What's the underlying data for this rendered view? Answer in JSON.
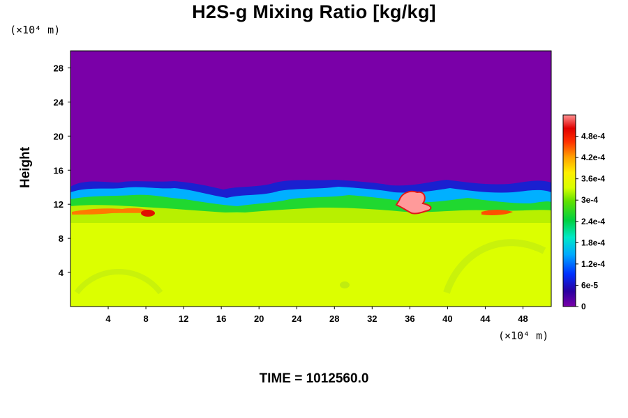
{
  "chart_data": {
    "type": "heatmap",
    "title": "H2S-g Mixing Ratio [kg/kg]",
    "ylabel": "Height",
    "y_unit": "(×10⁴ m)",
    "x_unit": "(×10⁴ m)",
    "x_ticks": [
      4,
      8,
      12,
      16,
      20,
      24,
      28,
      32,
      36,
      40,
      44,
      48
    ],
    "y_ticks": [
      4,
      8,
      12,
      16,
      20,
      24,
      28
    ],
    "xlim": [
      0,
      51
    ],
    "ylim": [
      0,
      30
    ],
    "colorbar_ticks": [
      "0",
      "6e-5",
      "1.2e-4",
      "1.8e-4",
      "2.4e-4",
      "3e-4",
      "3.6e-4",
      "4.2e-4",
      "4.8e-4"
    ],
    "colorbar_range": [
      0,
      0.00054
    ],
    "field_regions": {
      "upper_layer_value": 0.0,
      "lower_layer_value": 0.00033,
      "interface_height_approx": 14,
      "high_values": [
        {
          "x": 8,
          "y": 11,
          "value": 0.00045
        },
        {
          "x": 36,
          "y": 12,
          "value": 0.00054
        },
        {
          "x": 44,
          "y": 11,
          "value": 0.00042
        }
      ]
    },
    "time_label": "TIME = 1012560.0"
  }
}
